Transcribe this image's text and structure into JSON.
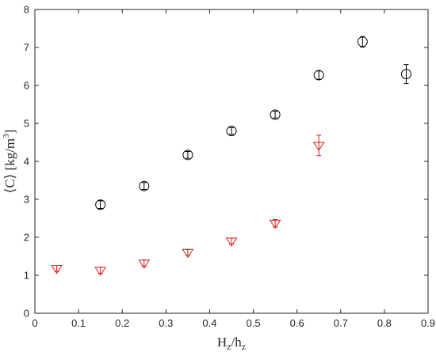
{
  "chart_data": {
    "type": "scatter",
    "title": "",
    "xlabel": {
      "main": "H",
      "sub1": "z",
      "mid": "/h",
      "sub2": "z"
    },
    "ylabel": {
      "prefix": "⟨C⟩ [kg/m",
      "sup": "3",
      "suffix": "]"
    },
    "xlim": [
      0,
      0.9
    ],
    "ylim": [
      0,
      8
    ],
    "xticks": [
      0,
      0.1,
      0.2,
      0.3,
      0.4,
      0.5,
      0.6,
      0.7,
      0.8,
      0.9
    ],
    "xtick_labels": [
      "0",
      "0.1",
      "0.2",
      "0.3",
      "0.4",
      "0.5",
      "0.6",
      "0.7",
      "0.8",
      "0.9"
    ],
    "yticks": [
      0,
      1,
      2,
      3,
      4,
      5,
      6,
      7,
      8
    ],
    "ytick_labels": [
      "0",
      "1",
      "2",
      "3",
      "4",
      "5",
      "6",
      "7",
      "8"
    ],
    "grid": false,
    "legend": "none",
    "series": [
      {
        "marker": "circle",
        "color": "#000000",
        "points": [
          {
            "x": 0.15,
            "y": 2.86,
            "err": 0.1
          },
          {
            "x": 0.25,
            "y": 3.35,
            "err": 0.09
          },
          {
            "x": 0.35,
            "y": 4.17,
            "err": 0.09
          },
          {
            "x": 0.45,
            "y": 4.8,
            "err": 0.09
          },
          {
            "x": 0.55,
            "y": 5.23,
            "err": 0.09
          },
          {
            "x": 0.65,
            "y": 6.27,
            "err": 0.11
          },
          {
            "x": 0.75,
            "y": 7.15,
            "err": 0.14
          },
          {
            "x": 0.85,
            "y": 6.3,
            "err": 0.25
          }
        ]
      },
      {
        "marker": "triangle-down",
        "color": "#e41a1c",
        "points": [
          {
            "x": 0.05,
            "y": 1.18,
            "err": 0.08
          },
          {
            "x": 0.15,
            "y": 1.13,
            "err": 0.08
          },
          {
            "x": 0.25,
            "y": 1.32,
            "err": 0.08
          },
          {
            "x": 0.35,
            "y": 1.6,
            "err": 0.08
          },
          {
            "x": 0.45,
            "y": 1.9,
            "err": 0.08
          },
          {
            "x": 0.55,
            "y": 2.37,
            "err": 0.1
          },
          {
            "x": 0.65,
            "y": 4.42,
            "err": 0.27
          }
        ]
      }
    ]
  }
}
